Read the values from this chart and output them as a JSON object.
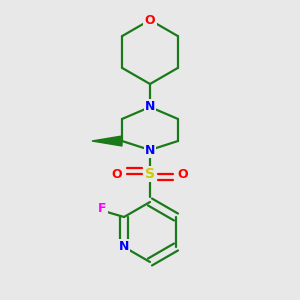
{
  "bg_color": "#e8e8e8",
  "bond_color": "#1a7a1a",
  "N_color": "#0000ff",
  "O_color": "#ff0000",
  "S_color": "#cccc00",
  "F_color": "#ff00ff",
  "line_width": 1.6,
  "fig_size": [
    3.0,
    3.0
  ],
  "dpi": 100,
  "xlim": [
    0,
    300
  ],
  "ylim": [
    0,
    300
  ]
}
